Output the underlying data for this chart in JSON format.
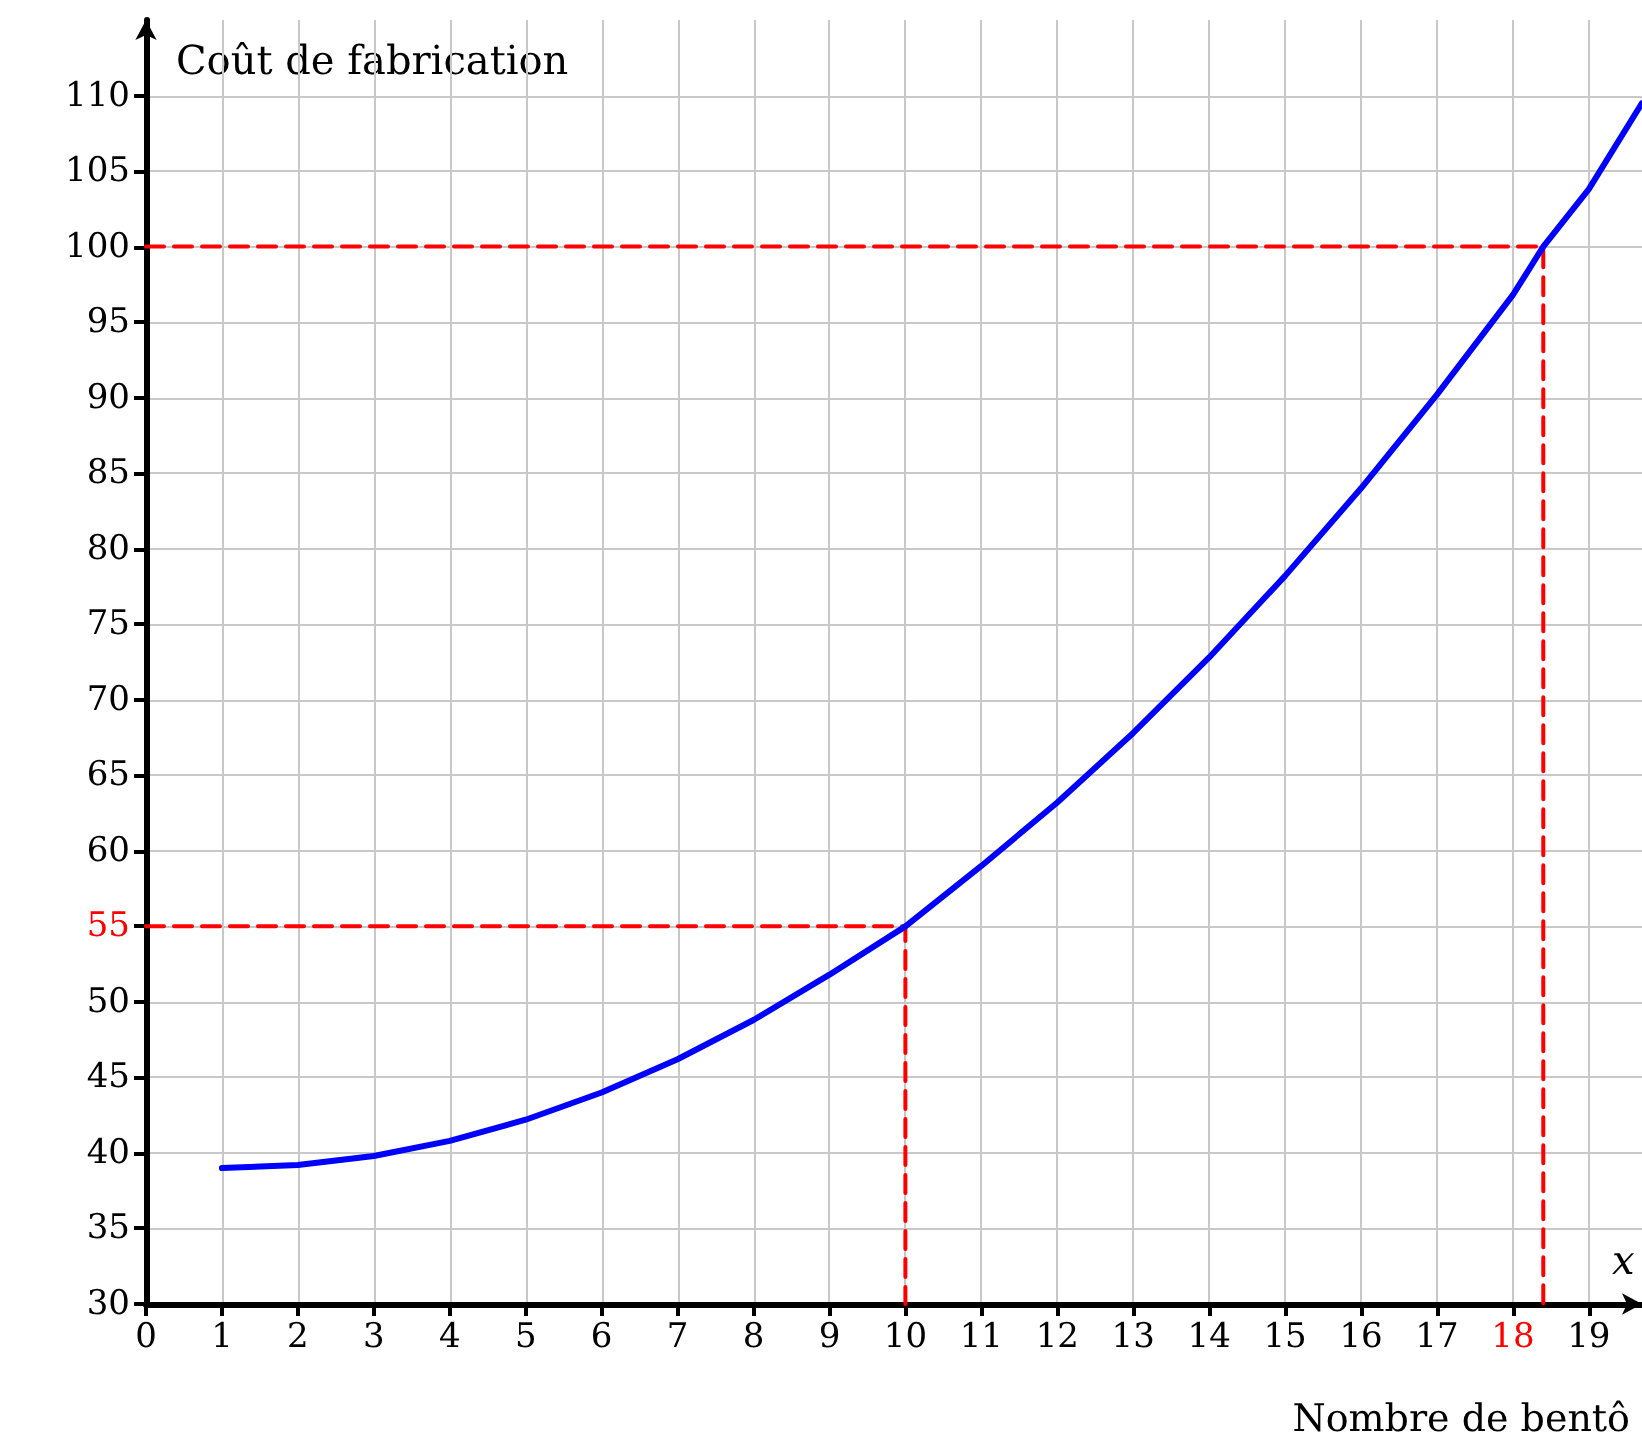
{
  "chart_data": {
    "type": "line",
    "xlabel": "Nombre de bentô",
    "ylabel": "Coût de fabrication",
    "annotations": [
      "x"
    ],
    "xlim": [
      0,
      19.7
    ],
    "ylim": [
      30,
      115
    ],
    "xticks": [
      0,
      1,
      2,
      3,
      4,
      5,
      6,
      7,
      8,
      9,
      10,
      11,
      12,
      13,
      14,
      15,
      16,
      17,
      18,
      19
    ],
    "yticks": [
      30,
      35,
      40,
      45,
      50,
      55,
      60,
      65,
      70,
      75,
      80,
      85,
      90,
      95,
      100,
      105,
      110
    ],
    "grid": true,
    "marker": "none",
    "series": [
      {
        "color": "#0000ff",
        "line_style": "solid",
        "x": [
          1,
          2,
          3,
          4,
          5,
          6,
          7,
          8,
          9,
          10,
          11,
          12,
          13,
          14,
          15,
          16,
          17,
          18,
          18.4,
          19,
          19.7
        ],
        "values": [
          39,
          39.2,
          39.8,
          40.8,
          42.2,
          44,
          46.2,
          48.8,
          51.8,
          55,
          59,
          63.2,
          67.8,
          72.8,
          78.2,
          84,
          90.2,
          96.8,
          100,
          103.8,
          109.5
        ]
      },
      {
        "color": "#ff0000",
        "line_style": "dashed",
        "x": [
          0,
          10,
          10
        ],
        "values": [
          55,
          55,
          30
        ]
      },
      {
        "color": "#ff0000",
        "line_style": "dashed",
        "x": [
          0,
          18.4,
          18.4
        ],
        "values": [
          100,
          100,
          30
        ]
      }
    ]
  }
}
